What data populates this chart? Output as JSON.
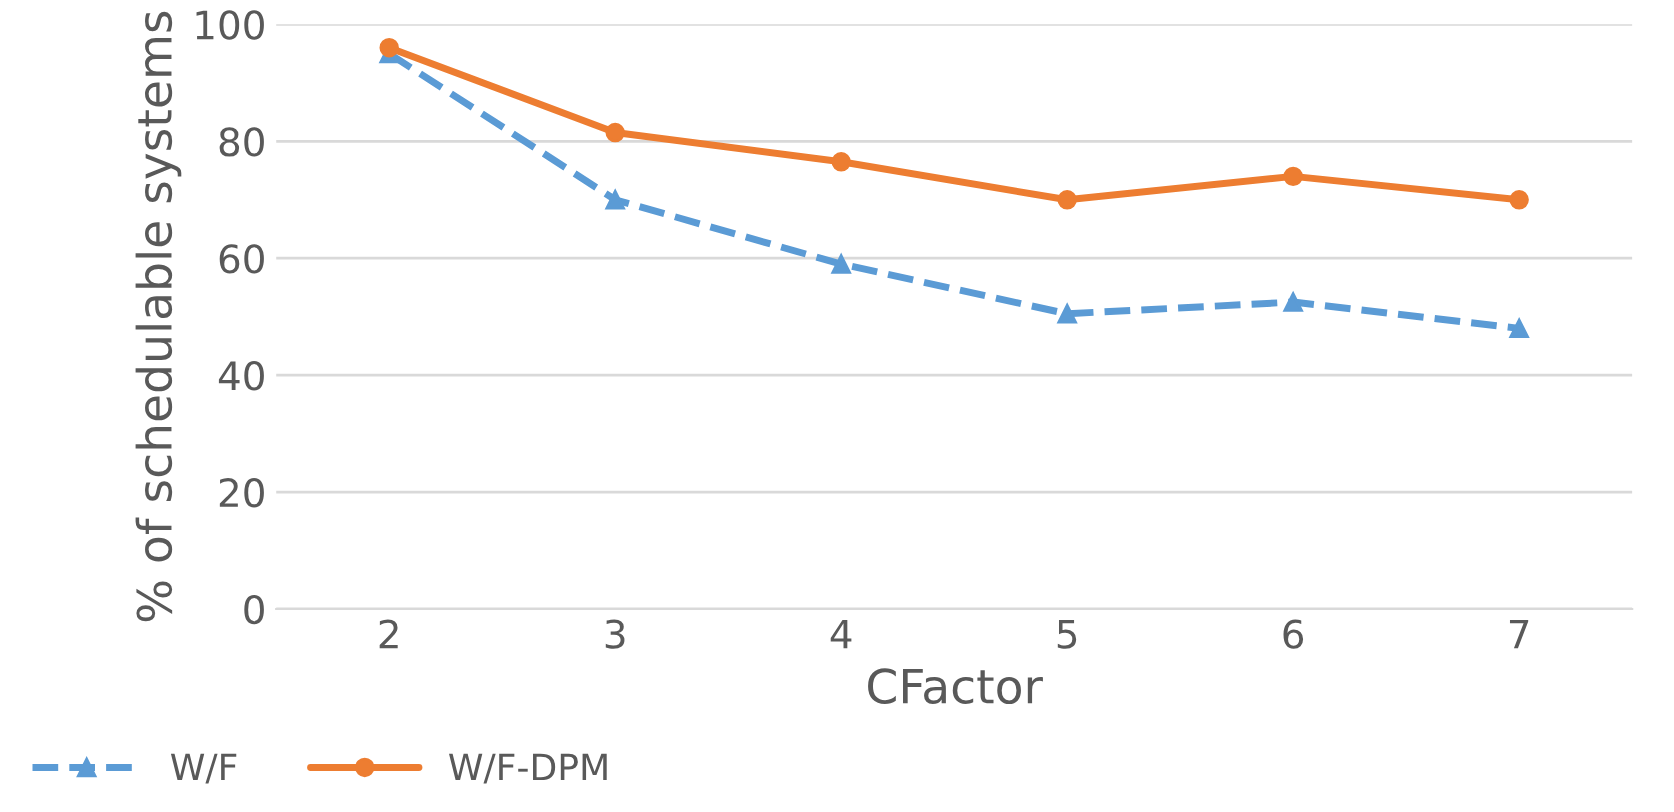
{
  "chart_data": {
    "type": "line",
    "categories": [
      "2",
      "3",
      "4",
      "5",
      "6",
      "7"
    ],
    "series": [
      {
        "name": "W/F",
        "color": "#5b9bd5",
        "values": [
          95,
          70,
          59,
          50.5,
          52.5,
          48
        ],
        "marker": "triangle",
        "line_style": "dashed"
      },
      {
        "name": "W/F-DPM",
        "color": "#ed7d31",
        "values": [
          96,
          81.5,
          76.5,
          70,
          74,
          70
        ],
        "marker": "circle",
        "line_style": "solid"
      }
    ],
    "xlabel": "CFactor",
    "ylabel": "% of schedulable systems",
    "ylim": [
      0,
      100
    ],
    "yticks": [
      0,
      20,
      40,
      60,
      80,
      100
    ],
    "grid": "y",
    "legend": "bottom left"
  }
}
